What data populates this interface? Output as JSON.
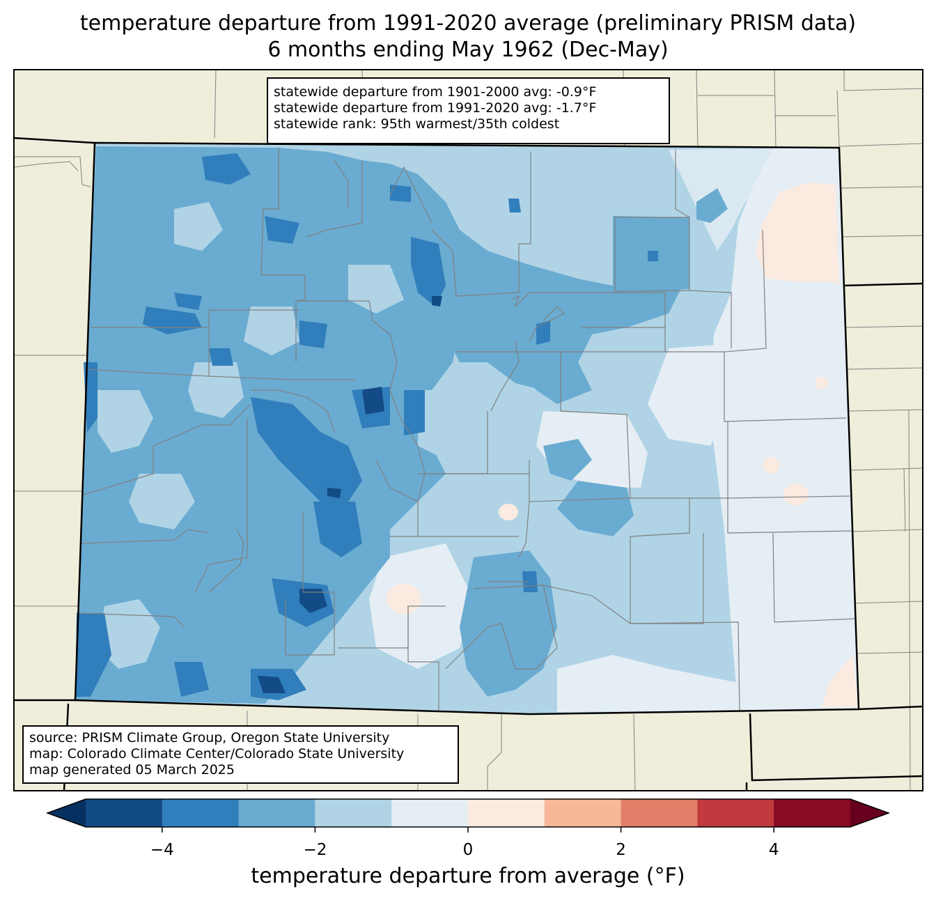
{
  "title": {
    "line1": "temperature departure from 1991-2020 average (preliminary PRISM data)",
    "line2": "6 months ending May 1962 (Dec-May)"
  },
  "stats": {
    "line1": "statewide departure from 1901-2000 avg: -0.9°F",
    "line2": "statewide departure from 1991-2020 avg: -1.7°F",
    "line3": "statewide rank: 95th warmest/35th coldest"
  },
  "source": {
    "line1": "source: PRISM Climate Group, Oregon State University",
    "line2": "map: Colorado Climate Center/Colorado State University",
    "line3": "map generated 05 March 2025"
  },
  "colorbar": {
    "label": "temperature departure from average (°F)",
    "ticks": [
      "−4",
      "−2",
      "0",
      "2",
      "4"
    ],
    "bins": [
      -5,
      -4,
      -3,
      -2,
      -1,
      0,
      1,
      2,
      3,
      4,
      5
    ],
    "colors": {
      "under": "#053061",
      "bin_colors": [
        "#134b86",
        "#307ebb",
        "#6aabd1",
        "#b0d4e6",
        "#e5eef4",
        "#faeae0",
        "#f7b899",
        "#e27f68",
        "#c13a3e",
        "#880a23"
      ],
      "over": "#67001f"
    }
  },
  "map": {
    "land_color": "#efeedb",
    "border_color": "#808080",
    "state_border_color": "#000000"
  }
}
